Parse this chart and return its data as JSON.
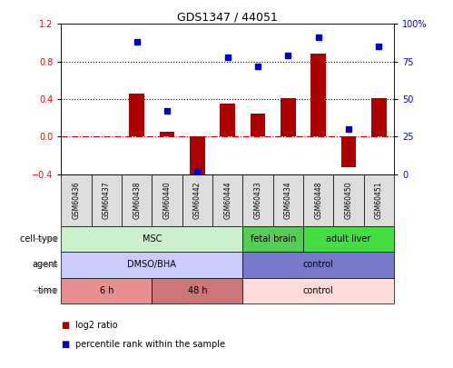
{
  "title": "GDS1347 / 44051",
  "samples": [
    "GSM60436",
    "GSM60437",
    "GSM60438",
    "GSM60440",
    "GSM60442",
    "GSM60444",
    "GSM60433",
    "GSM60434",
    "GSM60448",
    "GSM60450",
    "GSM60451"
  ],
  "log2_ratio": [
    0.0,
    0.0,
    0.46,
    0.05,
    -0.45,
    0.35,
    0.25,
    0.41,
    0.88,
    -0.32,
    0.41
  ],
  "percentile_rank": [
    null,
    null,
    88,
    42,
    2,
    78,
    72,
    79,
    91,
    30,
    85
  ],
  "ylim_left": [
    -0.4,
    1.2
  ],
  "ylim_right": [
    0,
    100
  ],
  "cell_type_groups": [
    {
      "label": "MSC",
      "start": 0,
      "end": 5,
      "color": "#ccf0cc"
    },
    {
      "label": "fetal brain",
      "start": 6,
      "end": 7,
      "color": "#55cc55"
    },
    {
      "label": "adult liver",
      "start": 8,
      "end": 10,
      "color": "#44dd44"
    }
  ],
  "agent_groups": [
    {
      "label": "DMSO/BHA",
      "start": 0,
      "end": 5,
      "color": "#ccccff"
    },
    {
      "label": "control",
      "start": 6,
      "end": 10,
      "color": "#7777cc"
    }
  ],
  "time_groups": [
    {
      "label": "6 h",
      "start": 0,
      "end": 2,
      "color": "#e89090"
    },
    {
      "label": "48 h",
      "start": 3,
      "end": 5,
      "color": "#cc7777"
    },
    {
      "label": "control",
      "start": 6,
      "end": 10,
      "color": "#ffdddd"
    }
  ],
  "bar_color": "#aa0000",
  "dot_color": "#0000cc",
  "zero_line_color": "#cc0000",
  "sample_box_color": "#dddddd",
  "bar_width": 0.5,
  "legend_items": [
    {
      "label": "log2 ratio",
      "color": "#aa0000"
    },
    {
      "label": "percentile rank within the sample",
      "color": "#0000cc"
    }
  ]
}
